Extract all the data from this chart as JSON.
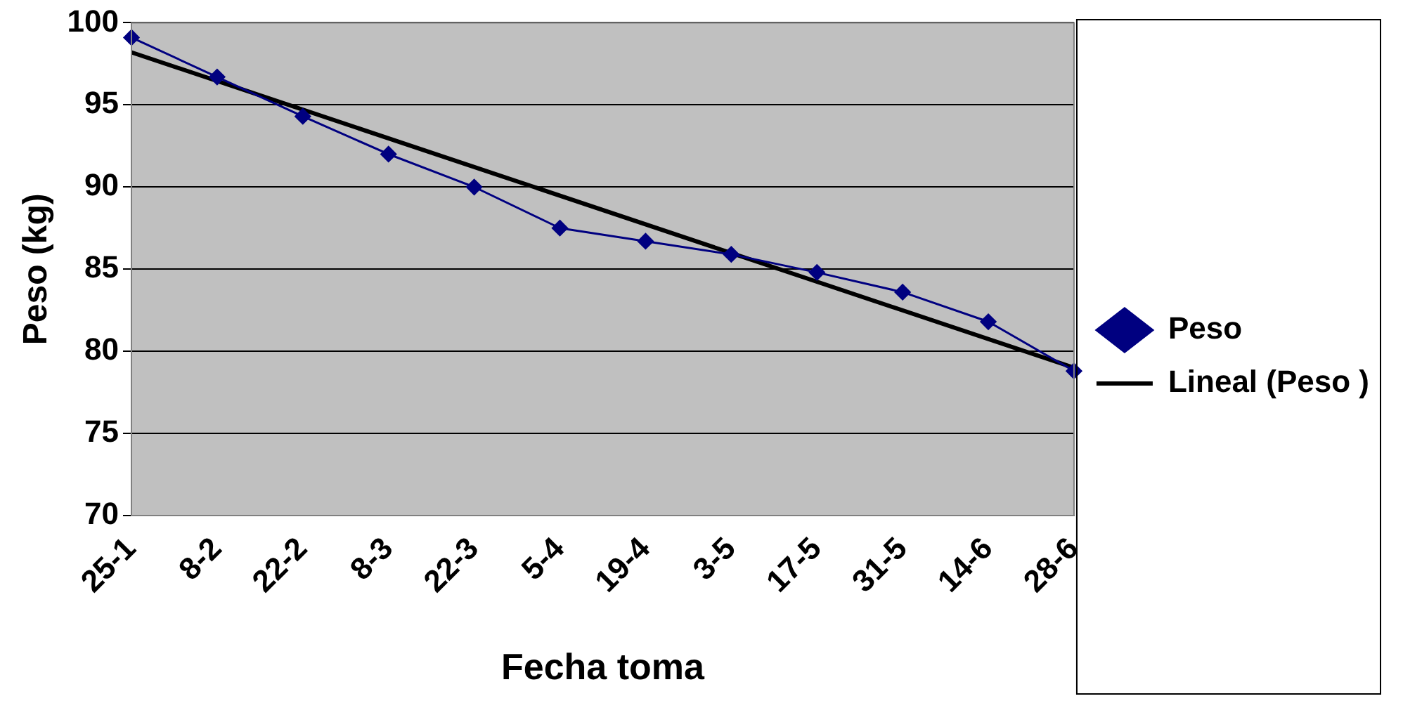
{
  "chart_data": {
    "type": "line",
    "xlabel": "Fecha toma",
    "ylabel": "Peso (kg)",
    "categories": [
      "25-1",
      "8-2",
      "22-2",
      "8-3",
      "22-3",
      "5-4",
      "19-4",
      "3-5",
      "17-5",
      "31-5",
      "14-6",
      "28-6"
    ],
    "series": [
      {
        "name": "Peso",
        "color": "#000080",
        "marker": "diamond",
        "line_style": "solid",
        "values": [
          99.1,
          96.7,
          94.3,
          92.0,
          90.0,
          87.5,
          86.7,
          85.9,
          84.8,
          83.6,
          81.8,
          78.8
        ]
      },
      {
        "name": "Lineal (Peso )",
        "color": "#000000",
        "marker": "none",
        "line_style": "solid",
        "x": [
          "25-1",
          "28-6"
        ],
        "values": [
          98.2,
          79.0
        ]
      }
    ],
    "ylim": [
      70,
      100
    ],
    "yticks": [
      70,
      75,
      80,
      85,
      90,
      95,
      100
    ],
    "grid": "y",
    "legend": "right"
  }
}
